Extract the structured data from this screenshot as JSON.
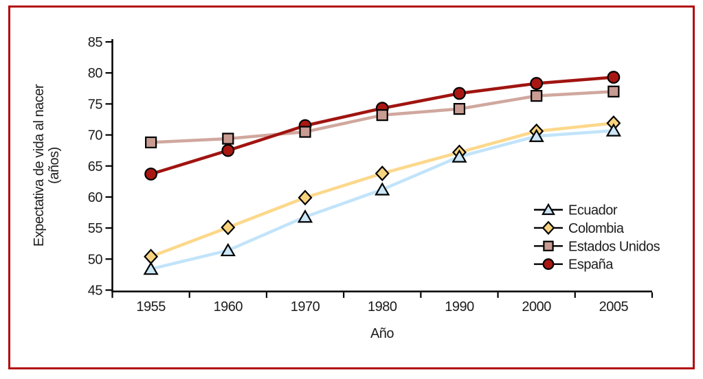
{
  "figure": {
    "border_color": "#b20b0e",
    "background_color": "#ffffff"
  },
  "chart_data": {
    "type": "line",
    "title": "",
    "xlabel": "Año",
    "ylabel": "Expectativa de vida al nacer (años)",
    "ylabel_lines": [
      "Expectativa de vida al nacer",
      "(años)"
    ],
    "categories": [
      "1955",
      "1960",
      "1970",
      "1980",
      "1990",
      "2000",
      "2005"
    ],
    "ylim": [
      45,
      85
    ],
    "ytick_step": 5,
    "yticks": [
      45,
      50,
      55,
      60,
      65,
      70,
      75,
      80,
      85
    ],
    "grid": false,
    "legend_position": "inside-right-middle",
    "axis_color": "#000000",
    "text_color": "#1c1c1c",
    "series": [
      {
        "name": "Ecuador",
        "marker": "triangle",
        "line_color": "#c2e4fa",
        "marker_fill": "#cbe7f8",
        "marker_stroke": "#000000",
        "values": [
          48.4,
          51.4,
          56.8,
          61.2,
          66.5,
          69.8,
          70.7
        ]
      },
      {
        "name": "Colombia",
        "marker": "diamond",
        "line_color": "#fcd88b",
        "marker_fill": "#f8d37e",
        "marker_stroke": "#000000",
        "values": [
          50.4,
          55.1,
          59.9,
          63.8,
          67.2,
          70.6,
          71.9
        ]
      },
      {
        "name": "Estados Unidos",
        "marker": "square",
        "line_color": "#d0a79e",
        "marker_fill": "#c89c92",
        "marker_stroke": "#000000",
        "values": [
          68.8,
          69.4,
          70.5,
          73.2,
          74.2,
          76.3,
          77.0
        ]
      },
      {
        "name": "España",
        "marker": "circle",
        "line_color": "#a01410",
        "marker_fill": "#aa1713",
        "marker_stroke": "#000000",
        "values": [
          63.7,
          67.5,
          71.5,
          74.3,
          76.7,
          78.3,
          79.3
        ]
      }
    ]
  }
}
